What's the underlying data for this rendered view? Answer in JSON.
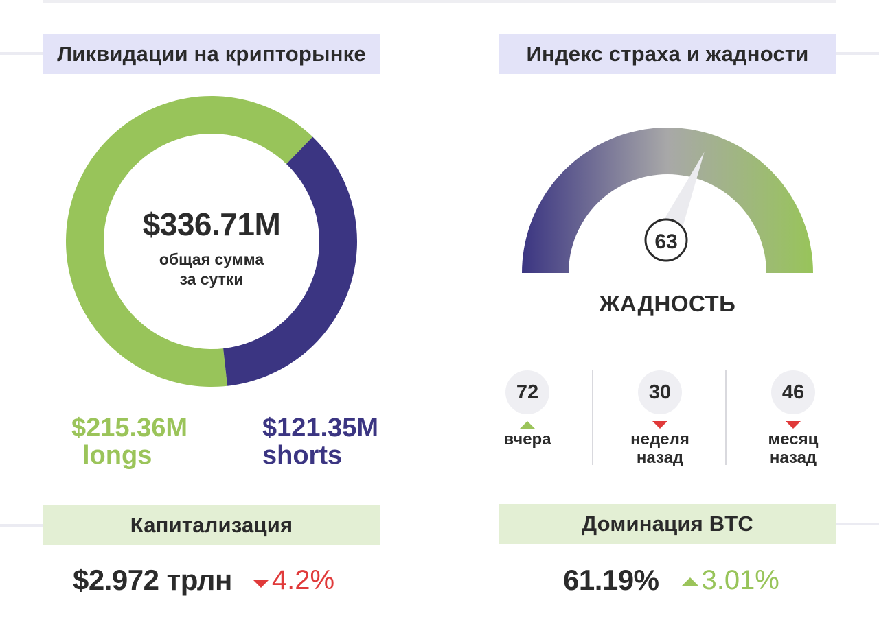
{
  "liquidations": {
    "title": "Ликвидации на крипторынке",
    "total": "$336.71M",
    "total_sub_line1": "общая сумма",
    "total_sub_line2": "за сутки",
    "longs_value": "$215.36M",
    "longs_label": "longs",
    "shorts_value": "$121.35M",
    "shorts_label": "shorts"
  },
  "chart_data": {
    "type": "pie",
    "categories": [
      "longs",
      "shorts"
    ],
    "values": [
      215.36,
      121.35
    ],
    "colors": [
      "#98c45a",
      "#3b3582"
    ],
    "title": "Ликвидации на крипторынке"
  },
  "fear_greed": {
    "title": "Индекс страха и жадности",
    "value": "63",
    "value_fraction": 0.63,
    "state": "ЖАДНОСТЬ",
    "history": [
      {
        "value": "72",
        "label_line1": "вчера",
        "label_line2": "",
        "direction": "up"
      },
      {
        "value": "30",
        "label_line1": "неделя",
        "label_line2": "назад",
        "direction": "down"
      },
      {
        "value": "46",
        "label_line1": "месяц",
        "label_line2": "назад",
        "direction": "down"
      }
    ]
  },
  "capitalization": {
    "title": "Капитализация",
    "value": "$2.972 трлн",
    "change": "4.2%",
    "direction": "down"
  },
  "btc_dominance": {
    "title": "Доминация BTC",
    "value": "61.19%",
    "change": "3.01%",
    "direction": "up"
  },
  "colors": {
    "green": "#98c45a",
    "purple": "#3b3582",
    "red": "#e03a3a",
    "title_bg_purple": "#e3e3f8",
    "title_bg_green": "#e3efd4"
  }
}
